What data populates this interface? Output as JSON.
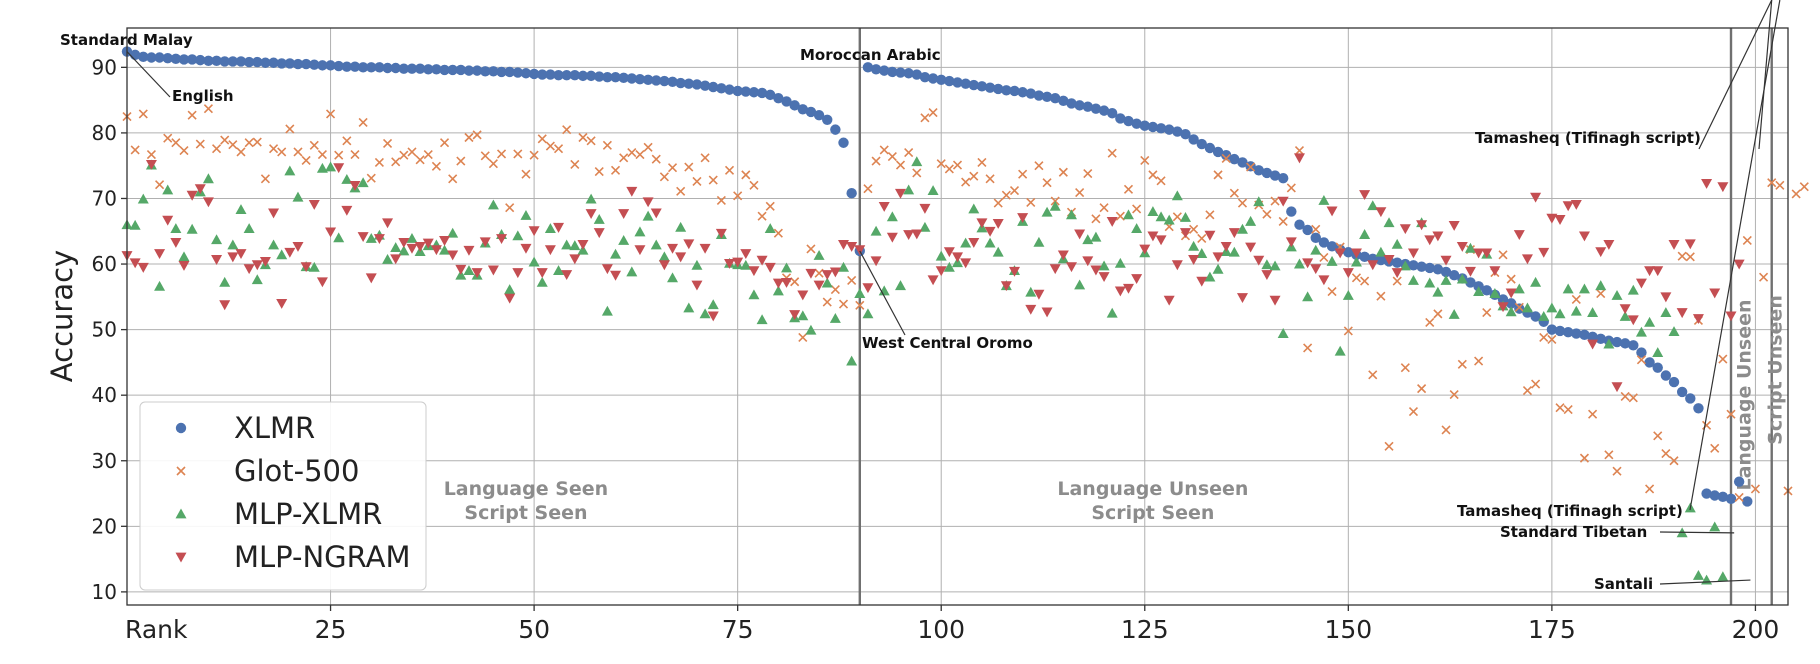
{
  "chart_data": {
    "type": "scatter",
    "xlabel": "Rank",
    "ylabel": "Accuracy",
    "xlim": [
      0,
      204
    ],
    "ylim": [
      8,
      96
    ],
    "xticks": [
      25,
      50,
      75,
      100,
      125,
      150,
      175,
      200
    ],
    "yticks": [
      10,
      20,
      30,
      40,
      50,
      60,
      70,
      80,
      90
    ],
    "grid": true,
    "legend_position": "bottom-left",
    "colors": {
      "XLMR": "#4c72b0",
      "Glot-500": "#dd8452",
      "MLP-XLMR": "#55a868",
      "MLP-NGRAM": "#c44e52"
    },
    "series": [
      {
        "name": "XLMR",
        "marker": "circle",
        "values": [
          92.4,
          91.9,
          91.6,
          91.5,
          91.5,
          91.4,
          91.3,
          91.2,
          91.2,
          91.1,
          91,
          91,
          90.9,
          90.9,
          90.9,
          90.8,
          90.8,
          90.7,
          90.7,
          90.6,
          90.6,
          90.5,
          90.5,
          90.4,
          90.3,
          90.3,
          90.2,
          90.1,
          90.1,
          90,
          90,
          90,
          89.9,
          89.9,
          89.8,
          89.8,
          89.8,
          89.7,
          89.7,
          89.6,
          89.6,
          89.6,
          89.5,
          89.5,
          89.4,
          89.4,
          89.3,
          89.3,
          89.2,
          89.1,
          89,
          88.9,
          88.9,
          88.8,
          88.8,
          88.8,
          88.7,
          88.7,
          88.6,
          88.5,
          88.5,
          88.4,
          88.3,
          88.2,
          88.1,
          88,
          87.9,
          87.8,
          87.6,
          87.5,
          87.4,
          87.2,
          87,
          86.8,
          86.6,
          86.4,
          86.3,
          86.2,
          86.1,
          85.8,
          85.3,
          84.8,
          84.2,
          83.6,
          83.2,
          82.7,
          82,
          80.5,
          78.5,
          70.8,
          62,
          90,
          89.7,
          89.5,
          89.3,
          89.2,
          89.1,
          88.9,
          88.5,
          88.3,
          88.1,
          87.9,
          87.7,
          87.5,
          87.3,
          87.1,
          86.9,
          86.7,
          86.5,
          86.4,
          86.2,
          86,
          85.7,
          85.5,
          85.3,
          84.9,
          84.5,
          84.2,
          84,
          83.7,
          83.4,
          83,
          82.2,
          81.8,
          81.4,
          81.1,
          80.9,
          80.7,
          80.5,
          80.2,
          79.8,
          79,
          78.3,
          77.7,
          77.1,
          76.6,
          76,
          75.5,
          74.9,
          74.3,
          73.9,
          73.5,
          73.1,
          68,
          66,
          65.2,
          64,
          63.3,
          62.7,
          62.2,
          61.8,
          61.4,
          61.1,
          60.8,
          60.6,
          60.4,
          60.2,
          60,
          59.8,
          59.6,
          59.4,
          59.2,
          58.8,
          58.3,
          57.8,
          57.2,
          56.6,
          56,
          55.3,
          54.6,
          54,
          53.2,
          52.6,
          52,
          51.2,
          50,
          49.8,
          49.6,
          49.4,
          49.2,
          48.9,
          48.6,
          48.3,
          48.1,
          47.9,
          47.6,
          46.5,
          45,
          44.2,
          43,
          42,
          40.5,
          39.5,
          38,
          25,
          24.7,
          24.5,
          24.2,
          26.8,
          23.8
        ]
      },
      {
        "name": "Glot-500",
        "marker": "x",
        "values": [
          82.5,
          77.4,
          82.9,
          76.7,
          72.1,
          79.2,
          78.5,
          77.3,
          82.7,
          78.3,
          83.7,
          77.6,
          78.9,
          78.2,
          77.1,
          78.5,
          78.6,
          73,
          77.6,
          77.1,
          80.6,
          77.1,
          75.8,
          78.1,
          76.7,
          82.9,
          76.6,
          78.8,
          76.7,
          81.6,
          73.1,
          75.5,
          78.4,
          75.6,
          76.6,
          77.1,
          75.9,
          76.7,
          74.9,
          78.5,
          73,
          75.7,
          79.3,
          79.7,
          76.5,
          75.3,
          76.8,
          68.6,
          76.8,
          73.7,
          76.6,
          79.1,
          78,
          77.6,
          80.5,
          75.2,
          79.3,
          78.8,
          74.1,
          78.1,
          74.3,
          76.2,
          77,
          76.7,
          77.8,
          76,
          73.3,
          74.7,
          71.1,
          74.8,
          72.6,
          76.2,
          72.8,
          69.7,
          74.3,
          70.4,
          73.6,
          72,
          67.3,
          68.8,
          64.7,
          57.9,
          57.3,
          48.8,
          62.3,
          58.6,
          54.2,
          56.1,
          53.9,
          57.5,
          53.7,
          71.5,
          75.7,
          77.4,
          76.4,
          75.1,
          77,
          73.9,
          82.3,
          83.1,
          75.3,
          74.5,
          75.1,
          72.5,
          73.4,
          75.5,
          73,
          69.3,
          70.5,
          71.2,
          73.7,
          69.4,
          75,
          72.4,
          69.6,
          74,
          67.9,
          70.9,
          73.8,
          66.9,
          68.6,
          76.9,
          67.3,
          71.4,
          68.4,
          75.8,
          73.6,
          72.7,
          65.7,
          67.2,
          64.3,
          65.3,
          63.9,
          67.5,
          73.6,
          76.1,
          70.8,
          69.3,
          74.8,
          69,
          67.6,
          69.6,
          66.5,
          71.6,
          77.3,
          47.2,
          65.3,
          61,
          55.8,
          62.6,
          49.8,
          57.9,
          57.4,
          43.1,
          55.1,
          32.2,
          57.4,
          44.2,
          37.5,
          41,
          51.1,
          52.4,
          34.7,
          40.1,
          44.7,
          62.2,
          45.2,
          52.6,
          58.7,
          61.4,
          57.7,
          53.4,
          40.7,
          41.7,
          48.8,
          48.5,
          38.1,
          37.8,
          54.6,
          30.4,
          37.1,
          55.5,
          30.9,
          28.4,
          39.8,
          39.6,
          45.4,
          25.7,
          33.8,
          31.1,
          30,
          61.2,
          61.1,
          51.4,
          35.4,
          31.9,
          45.5,
          37.1,
          24.4,
          63.6,
          25.7,
          58,
          72.4,
          72,
          25.4,
          70.7,
          71.8
        ]
      },
      {
        "name": "MLP-XLMR",
        "marker": "triangle-up",
        "values": [
          66,
          65.9,
          69.9,
          75.1,
          56.6,
          71.3,
          65.4,
          61.1,
          65.3,
          71,
          73,
          63.7,
          57.2,
          62.9,
          68.3,
          65.4,
          57.6,
          59.9,
          62.9,
          61.4,
          74.2,
          70.2,
          59.6,
          59.5,
          74.6,
          74.8,
          64,
          72.9,
          71.6,
          72.4,
          63.9,
          64.4,
          60.7,
          62.5,
          62,
          63.9,
          61.9,
          62.8,
          62.9,
          62.1,
          64.7,
          58.3,
          59,
          58.3,
          63.2,
          69,
          64.5,
          56.1,
          64.3,
          67.4,
          60.3,
          57.2,
          65.4,
          59,
          62.9,
          62.8,
          62.1,
          69.9,
          66.8,
          52.8,
          61.5,
          63.6,
          58.8,
          64.9,
          67.3,
          62.9,
          61.1,
          57.9,
          65.6,
          53.3,
          59.8,
          52.4,
          53.8,
          64.5,
          60.1,
          59.9,
          59.8,
          55.3,
          51.5,
          65.4,
          55.9,
          59.4,
          51.8,
          52.1,
          49.9,
          61.3,
          57.1,
          51.7,
          59.5,
          45.2,
          55.5,
          52.4,
          65,
          55.9,
          67.2,
          56.7,
          71.3,
          75.6,
          65.6,
          71.2,
          61.2,
          59.5,
          60.2,
          63.2,
          68.4,
          65.5,
          63.2,
          61.8,
          56.7,
          59,
          66.5,
          55.7,
          63.3,
          67.9,
          68.8,
          60.8,
          67.5,
          56.8,
          63.7,
          64.1,
          59.7,
          52.5,
          60.1,
          67.5,
          65.4,
          61.7,
          68,
          67.2,
          66.7,
          70.4,
          67.1,
          62.7,
          61.6,
          58,
          59.2,
          61.9,
          61.8,
          65.3,
          66.5,
          69.5,
          59.9,
          59.7,
          49.4,
          62.6,
          60,
          55,
          62.1,
          69.7,
          60.4,
          46.7,
          55.2,
          60.3,
          64.5,
          68.9,
          61.8,
          66.3,
          63,
          59.7,
          57.5,
          66.3,
          57.1,
          55.7,
          57.5,
          52.3,
          57.7,
          62.4,
          55.8,
          61.5,
          55.5,
          53.6,
          52.7,
          56.2,
          53.3,
          57.2,
          52,
          53.3,
          52.4,
          56.2,
          52.8,
          56.2,
          52.6,
          56.7,
          47.8,
          55.2,
          52,
          56,
          49.6,
          51.1,
          46.5,
          52.6,
          49.7,
          19,
          22.8,
          12.5,
          11.8,
          19.9,
          12.3
        ]
      },
      {
        "name": "MLP-NGRAM",
        "marker": "triangle-down",
        "values": [
          61.3,
          60.2,
          59.5,
          75.2,
          61.6,
          66.7,
          63.3,
          59.8,
          70.5,
          71.5,
          69.5,
          60.7,
          53.8,
          61.1,
          61.6,
          59.3,
          59.9,
          60.4,
          67.8,
          54,
          61.8,
          62.7,
          59.6,
          69.1,
          57.3,
          64.9,
          74.7,
          68.2,
          72,
          64.2,
          57.9,
          63.9,
          66.3,
          60.8,
          63.3,
          62.4,
          62.7,
          63.2,
          62.2,
          63.6,
          61.4,
          59.2,
          62.1,
          58.7,
          63.4,
          59.1,
          63.9,
          54.8,
          58.7,
          62.4,
          65.1,
          58.7,
          62.2,
          65.6,
          58.4,
          60.8,
          63,
          67.7,
          64.8,
          59.3,
          58.3,
          67.7,
          71.1,
          62.2,
          69.5,
          67.8,
          59.9,
          62.4,
          61.1,
          63.1,
          56.8,
          62.4,
          52.1,
          64.7,
          60.1,
          60.3,
          61.6,
          59,
          60.6,
          59.5,
          57.1,
          57.2,
          52.3,
          55.3,
          58.6,
          56.8,
          58.4,
          58.8,
          63,
          62.7,
          62.2,
          56.4,
          60.5,
          68.8,
          64.1,
          70.8,
          64.5,
          64.6,
          68.5,
          57.6,
          59,
          61.9,
          61.1,
          60.2,
          63.3,
          66.3,
          65,
          66.2,
          56.7,
          58.9,
          67.1,
          53.1,
          55.4,
          52.7,
          59.3,
          61.4,
          59.6,
          64.6,
          60.5,
          59.1,
          58.1,
          66.5,
          55.9,
          56.3,
          57.8,
          62.3,
          64.3,
          63.7,
          54.5,
          59.9,
          64.8,
          60.7,
          57.4,
          64.4,
          61.1,
          62.7,
          64.8,
          54.9,
          62.6,
          60.6,
          58.4,
          54.5,
          69.6,
          63.4,
          76.2,
          60.2,
          59.3,
          57.6,
          68.1,
          61.7,
          58.7,
          61.7,
          70.6,
          59.9,
          68,
          60.7,
          58.7,
          65.4,
          61.7,
          66,
          63.7,
          64.3,
          60.6,
          65.9,
          62.7,
          58.9,
          61.7,
          61.7,
          59,
          53.5,
          55.6,
          64.5,
          60.8,
          70.2,
          61.8,
          67,
          66.8,
          68.9,
          69.1,
          64.3,
          47.8,
          61.9,
          63,
          41.3,
          53.2,
          51.5,
          57.1,
          59,
          59,
          55,
          63,
          52.6,
          63.1,
          51.7,
          72.3,
          55.6,
          71.8,
          52.1,
          60
        ]
      }
    ],
    "vertical_lines": [
      90,
      197,
      202
    ],
    "region_labels": [
      {
        "line1": "Language Seen",
        "line2": "Script Seen"
      },
      {
        "line1": "Language Unseen",
        "line2": "Script Seen"
      },
      {
        "line1": "Language Unseen"
      },
      {
        "line1": "Script Unseen"
      }
    ],
    "annotations": [
      {
        "text": "Standard Malay"
      },
      {
        "text": "English"
      },
      {
        "text": "Moroccan Arabic"
      },
      {
        "text": "West Central Oromo"
      },
      {
        "text": "Tamasheq (Tifinagh script)"
      },
      {
        "text": "Tamasheq (Tifinagh script)"
      },
      {
        "text": "Standard Tibetan"
      },
      {
        "text": "Santali"
      }
    ]
  }
}
